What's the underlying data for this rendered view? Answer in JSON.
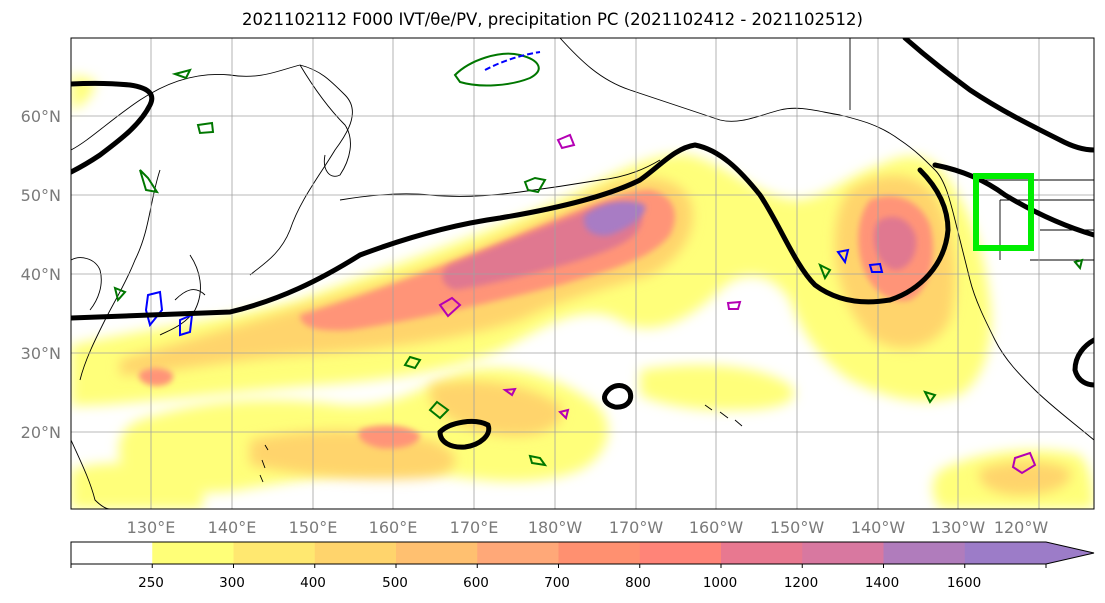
{
  "title": "2021102112 F000 IVT/θe/PV, precipitation PC (2021102412 - 2021102512)",
  "map": {
    "lat_labels": [
      "60°N",
      "50°N",
      "40°N",
      "30°N",
      "20°N"
    ],
    "lon_labels": [
      "130°E",
      "140°E",
      "150°E",
      "160°E",
      "170°E",
      "180°W",
      "170°W",
      "160°W",
      "150°W",
      "140°W",
      "130°W",
      "120°W"
    ],
    "colors": {
      "coast": "#000000",
      "theta_e_contour": "#000000",
      "pv_green": "#007700",
      "pv_blue": "#0000ff",
      "pv_magenta": "#b400b4",
      "highlight_box": "#00ee00",
      "grid": "#a0a0a0"
    }
  },
  "colorbar": {
    "levels": [
      "250",
      "300",
      "400",
      "500",
      "600",
      "700",
      "800",
      "1000",
      "1200",
      "1400",
      "1600"
    ],
    "colors": [
      "#ffffff",
      "#ffff78",
      "#ffe870",
      "#ffd46c",
      "#ffc070",
      "#ffa878",
      "#ff9070",
      "#ff8478",
      "#e87890",
      "#d878a0",
      "#b07cbc",
      "#9c7cc8"
    ]
  }
}
